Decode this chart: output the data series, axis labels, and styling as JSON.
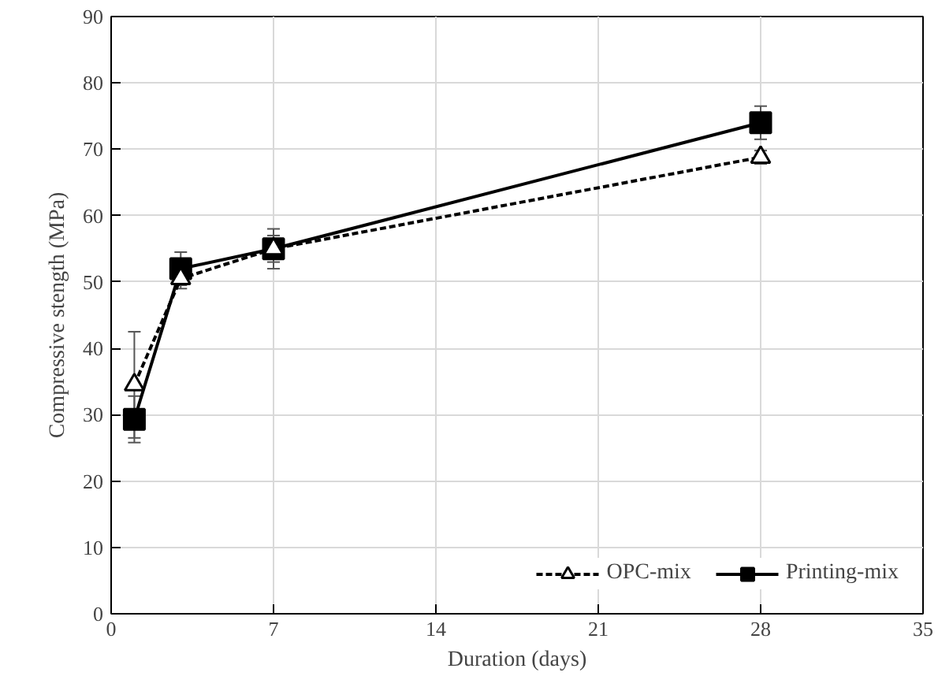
{
  "chart_data": {
    "type": "line",
    "xlabel": "Duration (days)",
    "ylabel": "Compressive stength (MPa)",
    "x": [
      1,
      3,
      7,
      28
    ],
    "series": [
      {
        "name": "OPC-mix",
        "color": "#000000",
        "values": [
          34.5,
          50.5,
          55,
          68.8
        ],
        "errors": [
          8,
          1.5,
          2,
          1
        ],
        "marker": "triangle",
        "line_style": "dashed"
      },
      {
        "name": "Printing-mix",
        "color": "#000000",
        "values": [
          29.3,
          52,
          55,
          74
        ],
        "errors": [
          3.5,
          2.5,
          3,
          2.5
        ],
        "marker": "square",
        "line_style": "solid"
      }
    ],
    "xlim": [
      0,
      35
    ],
    "xticks": [
      0,
      7,
      14,
      21,
      28,
      35
    ],
    "ylim": [
      0,
      90
    ],
    "yticks": [
      0,
      10,
      20,
      30,
      40,
      50,
      60,
      70,
      80,
      90
    ],
    "grid": true,
    "legend": "bottom right"
  }
}
